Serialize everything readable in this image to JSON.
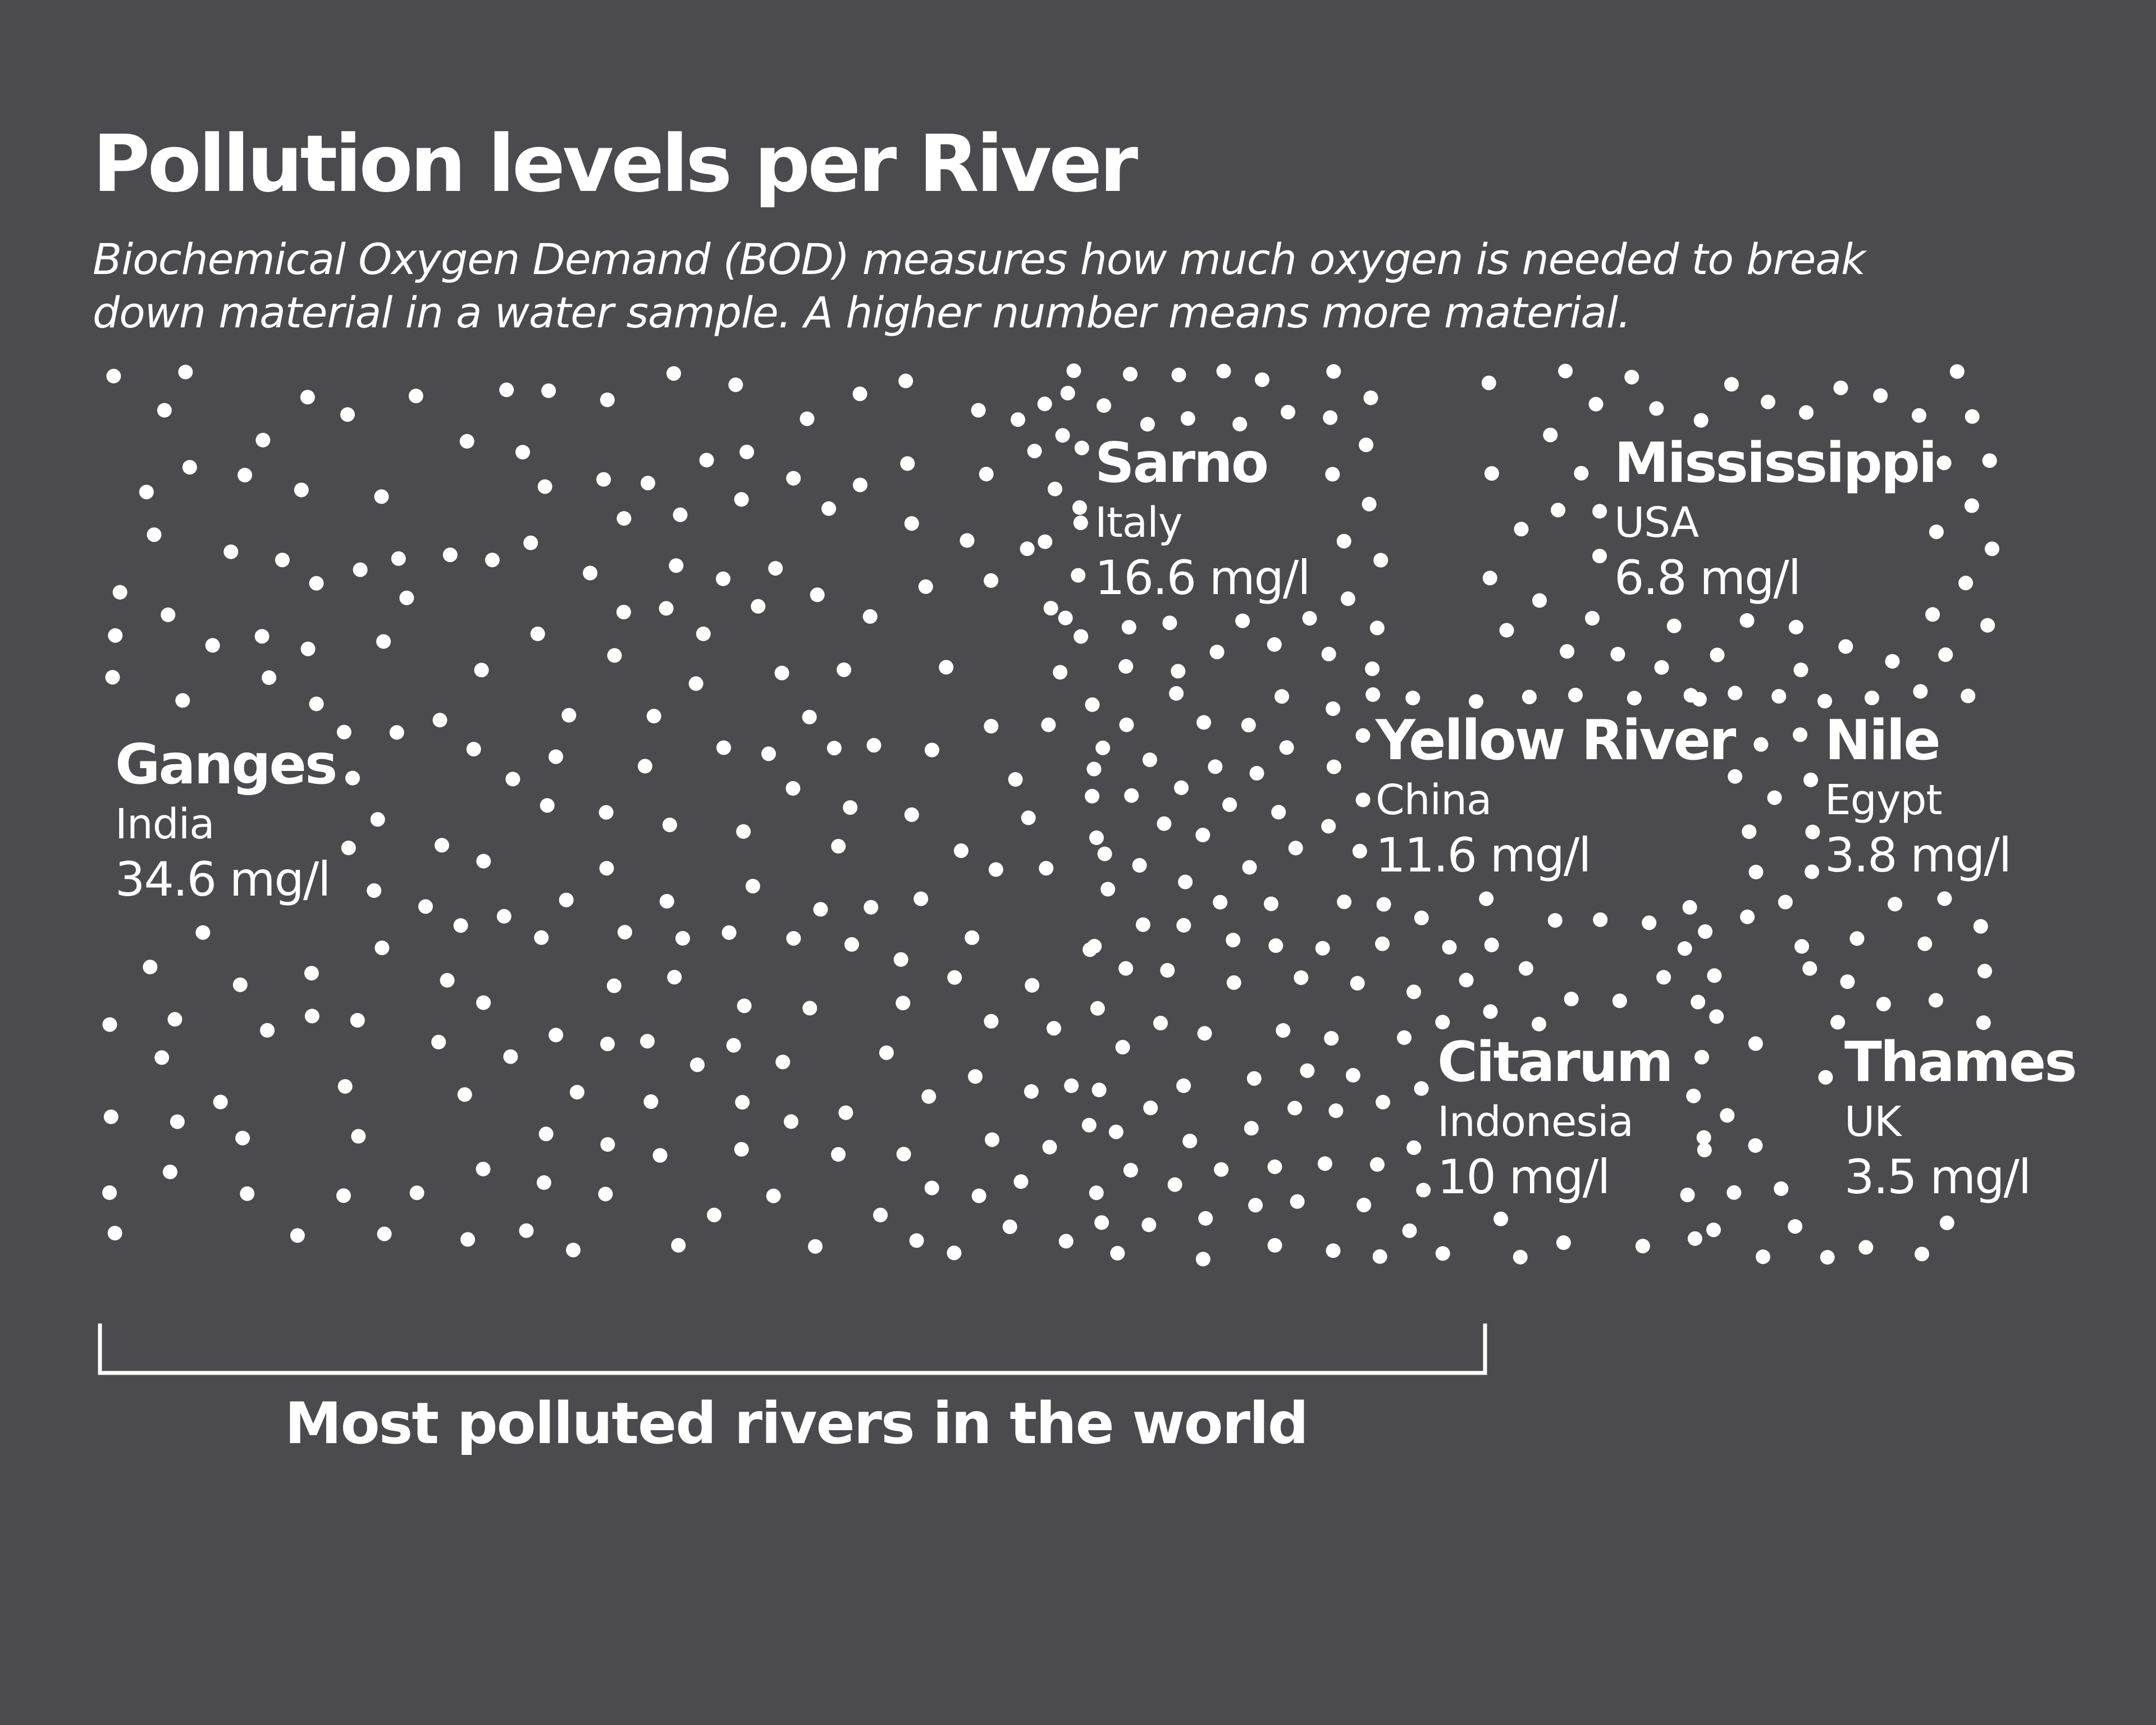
{
  "chart_data": {
    "type": "dot-density",
    "title": "Pollution levels per River",
    "subtitle": [
      "Biochemical Oxygen Demand (BOD) measures how much oxygen is needed to break",
      "down material in a water sample. A higher number means more material."
    ],
    "unit": "mg/l",
    "rivers": [
      {
        "name": "Ganges",
        "country": "India",
        "value": 34.6,
        "value_label": "34.6 mg/l"
      },
      {
        "name": "Sarno",
        "country": "Italy",
        "value": 16.6,
        "value_label": "16.6 mg/l"
      },
      {
        "name": "Yellow River",
        "country": "China",
        "value": 11.6,
        "value_label": "11.6 mg/l"
      },
      {
        "name": "Citarum",
        "country": "Indonesia",
        "value": 10,
        "value_label": "10 mg/l"
      },
      {
        "name": "Mississippi",
        "country": "USA",
        "value": 6.8,
        "value_label": "6.8 mg/l"
      },
      {
        "name": "Nile",
        "country": "Egypt",
        "value": 3.8,
        "value_label": "3.8 mg/l"
      },
      {
        "name": "Thames",
        "country": "UK",
        "value": 3.5,
        "value_label": "3.5 mg/l"
      }
    ],
    "annotation": "Most polluted rivers in the world",
    "annotation_covers": [
      "Ganges",
      "Sarno",
      "Yellow River",
      "Citarum"
    ]
  },
  "colors": {
    "background": "#4b4a4f",
    "foreground": "#ffffff"
  }
}
